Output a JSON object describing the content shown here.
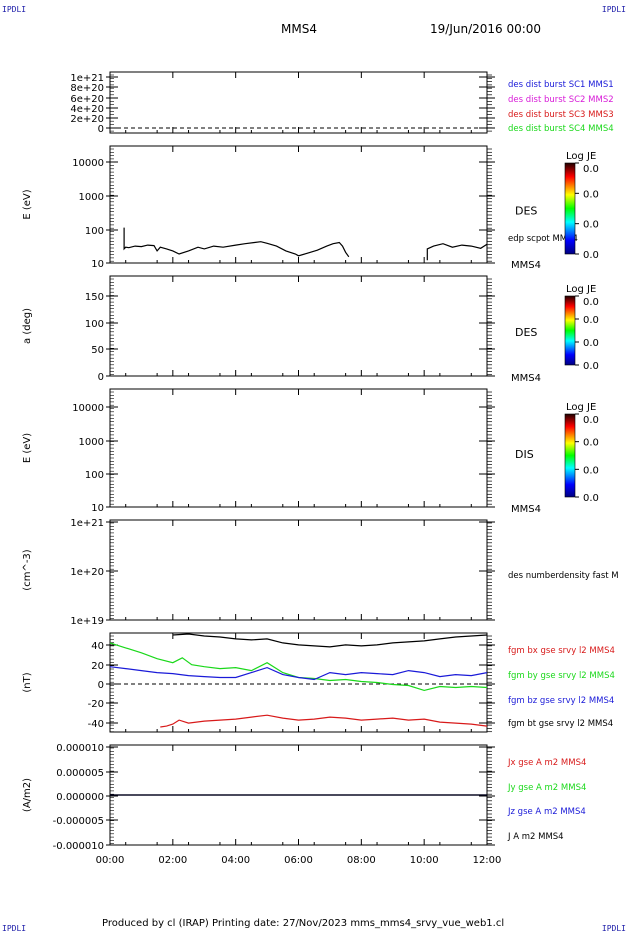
{
  "corners": {
    "tl": "IPDLI",
    "tr": "IPDLI",
    "bl": "IPDLI",
    "br": "IPDLI"
  },
  "header": {
    "mission": "MMS4",
    "date": "19/Jun/2016 00:00"
  },
  "footer": {
    "text": "Produced by cl (IRAP)    Printing date: 27/Nov/2023    mms_mms4_srvy_vue_web1.cl"
  },
  "x_axis": {
    "range": [
      0,
      12
    ],
    "ticks": [
      {
        "v": 0,
        "label": "00:00"
      },
      {
        "v": 2,
        "label": "02:00"
      },
      {
        "v": 4,
        "label": "04:00"
      },
      {
        "v": 6,
        "label": "06:00"
      },
      {
        "v": 8,
        "label": "08:00"
      },
      {
        "v": 10,
        "label": "10:00"
      },
      {
        "v": 12,
        "label": "12:00"
      }
    ]
  },
  "panels": {
    "p1": {
      "ylabel": "",
      "ticks": [
        "1e+21",
        "8e+20",
        "6e+20",
        "4e+20",
        "2e+20",
        "0"
      ],
      "legend": [
        {
          "text": "des dist burst SC1 MMS1",
          "color": "#1a1ad8"
        },
        {
          "text": "des dist burst SC2 MMS2",
          "color": "#d81ad8"
        },
        {
          "text": "des dist burst SC3 MMS3",
          "color": "#d81a1a"
        },
        {
          "text": "des dist burst SC4 MMS4",
          "color": "#1ad81a"
        }
      ]
    },
    "p2": {
      "ylabel": "E (eV)",
      "ticks": [
        "10000",
        "1000",
        "100",
        "10"
      ],
      "label": "DES",
      "sub": "edp scpot MMS4",
      "bottom": "MMS4",
      "cbar_title": "Log JE",
      "cbar_ticks": [
        "0.0",
        "0.0",
        "0.0",
        "0.0"
      ]
    },
    "p3": {
      "ylabel": "a (deg)",
      "ticks": [
        "150",
        "100",
        "50",
        "0"
      ],
      "label": "DES",
      "bottom": "MMS4",
      "cbar_title": "Log JE",
      "cbar_ticks": [
        "0.0",
        "0.0",
        "0.0",
        "0.0"
      ]
    },
    "p4": {
      "ylabel": "E (eV)",
      "ticks": [
        "10000",
        "1000",
        "100",
        "10"
      ],
      "label": "DIS",
      "bottom": "MMS4",
      "cbar_title": "Log JE",
      "cbar_ticks": [
        "0.0",
        "0.0",
        "0.0",
        "0.0"
      ]
    },
    "p5": {
      "ylabel": "(cm^-3)",
      "ticks": [
        "1e+21",
        "1e+20",
        "1e+19"
      ],
      "legend": [
        {
          "text": "des numberdensity fast M",
          "color": "#000000"
        }
      ]
    },
    "p6": {
      "ylabel": "(nT)",
      "ticks": [
        "40",
        "20",
        "0",
        "-20",
        "-40"
      ],
      "legend": [
        {
          "text": "fgm bx gse srvy l2 MMS4",
          "color": "#d81a1a"
        },
        {
          "text": "fgm by gse srvy l2 MMS4",
          "color": "#1ad81a"
        },
        {
          "text": "fgm bz gse srvy l2 MMS4",
          "color": "#1a1ad8"
        },
        {
          "text": "fgm bt gse srvy l2 MMS4",
          "color": "#000000"
        }
      ]
    },
    "p7": {
      "ylabel": "(A/m2)",
      "ticks": [
        "0.000010",
        "0.000005",
        "0.000000",
        "-0.000005",
        "-0.000010"
      ],
      "legend": [
        {
          "text": "Jx gse A m2 MMS4",
          "color": "#d81a1a"
        },
        {
          "text": "Jy gse A m2 MMS4",
          "color": "#1ad81a"
        },
        {
          "text": "Jz gse A m2 MMS4",
          "color": "#1a1ad8"
        },
        {
          "text": "J A m2 MMS4",
          "color": "#000000"
        }
      ]
    }
  },
  "chart_data": [
    {
      "type": "line",
      "panel": "p2",
      "log_y": true,
      "ylim": [
        10,
        20000
      ],
      "series": [
        {
          "name": "edp scpot MMS4",
          "color": "#000000",
          "x": [
            0.45,
            0.45,
            0.5,
            0.6,
            0.8,
            1.0,
            1.2,
            1.4,
            1.5,
            1.6,
            1.8,
            2.0,
            2.2,
            2.5,
            2.8,
            3.0,
            3.3,
            3.6,
            4.0,
            4.3,
            4.6,
            4.8,
            5.0,
            5.3,
            5.6,
            5.9,
            6.0,
            6.3,
            6.6,
            6.9,
            7.1,
            7.3,
            7.4,
            7.5,
            7.6
          ],
          "y": [
            100,
            25,
            28,
            27,
            30,
            29,
            32,
            31,
            22,
            28,
            25,
            22,
            18,
            22,
            28,
            25,
            30,
            28,
            32,
            35,
            38,
            40,
            36,
            30,
            22,
            18,
            16,
            19,
            23,
            30,
            35,
            38,
            30,
            20,
            15
          ]
        },
        {
          "name": "",
          "color": "#000000",
          "x": [
            10.1,
            10.1,
            10.3,
            10.6,
            10.9,
            11.2,
            11.5,
            11.8,
            12.0
          ],
          "y": [
            12,
            25,
            30,
            35,
            28,
            32,
            30,
            26,
            34
          ]
        }
      ]
    },
    {
      "type": "line",
      "panel": "p6",
      "ylim": [
        -50,
        50
      ],
      "series": [
        {
          "name": "fgm bx gse srvy l2 MMS4",
          "color": "#d81a1a",
          "x": [
            1.6,
            1.8,
            2.0,
            2.2,
            2.5,
            3.0,
            3.5,
            4.0,
            4.5,
            5.0,
            5.5,
            6.0,
            6.5,
            7.0,
            7.5,
            8.0,
            8.5,
            9.0,
            9.5,
            10.0,
            10.5,
            11.0,
            11.5,
            12.0
          ],
          "y": [
            -45,
            -44,
            -42,
            -38,
            -41,
            -39,
            -38,
            -37,
            -35,
            -33,
            -36,
            -38,
            -37,
            -35,
            -36,
            -38,
            -37,
            -36,
            -38,
            -37,
            -40,
            -41,
            -42,
            -44
          ]
        },
        {
          "name": "fgm by gse srvy l2 MMS4",
          "color": "#1ad81a",
          "x": [
            0,
            0.5,
            1.0,
            1.5,
            2.0,
            2.3,
            2.6,
            3.0,
            3.5,
            4.0,
            4.5,
            5.0,
            5.5,
            6.0,
            6.5,
            7.0,
            7.5,
            8.0,
            8.5,
            9.0,
            9.5,
            10.0,
            10.5,
            11.0,
            11.5,
            12.0
          ],
          "y": [
            40,
            35,
            30,
            24,
            20,
            25,
            18,
            16,
            14,
            15,
            12,
            20,
            10,
            5,
            4,
            2,
            3,
            1,
            0,
            -2,
            -3,
            -8,
            -4,
            -5,
            -4,
            -5
          ]
        },
        {
          "name": "fgm bz gse srvy l2 MMS4",
          "color": "#1a1ad8",
          "x": [
            0,
            0.5,
            1.0,
            1.5,
            2.0,
            2.5,
            3.0,
            3.5,
            4.0,
            4.5,
            5.0,
            5.5,
            6.0,
            6.5,
            7.0,
            7.5,
            8.0,
            8.5,
            9.0,
            9.5,
            10.0,
            10.5,
            11.0,
            11.5,
            12.0
          ],
          "y": [
            16,
            14,
            12,
            10,
            9,
            7,
            6,
            5,
            5,
            10,
            15,
            8,
            5,
            3,
            10,
            8,
            10,
            9,
            8,
            12,
            10,
            6,
            8,
            7,
            10
          ]
        },
        {
          "name": "fgm bt gse srvy l2 MMS4",
          "color": "#000000",
          "x": [
            2.0,
            2.5,
            3.0,
            3.5,
            4.0,
            4.5,
            5.0,
            5.5,
            6.0,
            6.5,
            7.0,
            7.5,
            8.0,
            8.5,
            9.0,
            9.5,
            10.0,
            10.5,
            11.0,
            11.5,
            12.0
          ],
          "y": [
            48,
            49,
            47,
            46,
            44,
            43,
            44,
            40,
            38,
            37,
            36,
            38,
            37,
            38,
            40,
            41,
            42,
            44,
            46,
            47,
            48
          ]
        }
      ]
    },
    {
      "type": "line",
      "panel": "p7",
      "ylim": [
        -1e-05,
        1e-05
      ],
      "series": [
        {
          "name": "Jz gse A m2 MMS4",
          "color": "#1a1ad8",
          "x": [
            0,
            12
          ],
          "y": [
            0,
            0
          ]
        },
        {
          "name": "J A m2 MMS4",
          "color": "#000000",
          "x": [
            0,
            12
          ],
          "y": [
            0,
            0
          ]
        }
      ]
    }
  ]
}
